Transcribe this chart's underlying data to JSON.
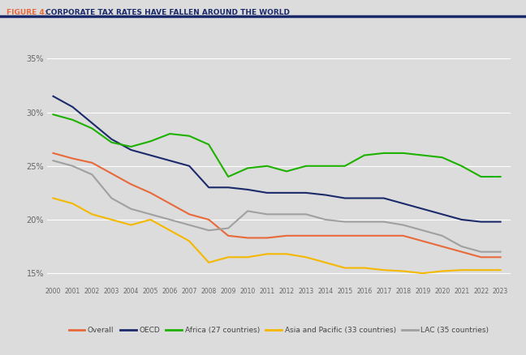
{
  "title_figure": "FIGURE 4:",
  "title_text": " CORPORATE TAX RATES HAVE FALLEN AROUND THE WORLD",
  "title_color_figure": "#E8693A",
  "title_color_text": "#1B2A6B",
  "background_color": "#DCDCDC",
  "plot_bg_color": "#DCDCDC",
  "years": [
    2000,
    2001,
    2002,
    2003,
    2004,
    2005,
    2006,
    2007,
    2008,
    2009,
    2010,
    2011,
    2012,
    2013,
    2014,
    2015,
    2016,
    2017,
    2018,
    2019,
    2020,
    2021,
    2022,
    2023
  ],
  "series": {
    "Overall": {
      "color": "#E8693A",
      "values": [
        26.2,
        25.7,
        25.3,
        24.3,
        23.3,
        22.5,
        21.5,
        20.5,
        20.0,
        18.5,
        18.3,
        18.3,
        18.5,
        18.5,
        18.5,
        18.5,
        18.5,
        18.5,
        18.5,
        18.0,
        17.5,
        17.0,
        16.5,
        16.5
      ]
    },
    "OECD": {
      "color": "#1B2A6B",
      "values": [
        31.5,
        30.5,
        29.0,
        27.5,
        26.5,
        26.0,
        25.5,
        25.0,
        23.0,
        23.0,
        22.8,
        22.5,
        22.5,
        22.5,
        22.3,
        22.0,
        22.0,
        22.0,
        21.5,
        21.0,
        20.5,
        20.0,
        19.8,
        19.8
      ]
    },
    "Africa (27 countries)": {
      "color": "#1DB100",
      "values": [
        29.8,
        29.3,
        28.5,
        27.2,
        26.8,
        27.3,
        28.0,
        27.8,
        27.0,
        24.0,
        24.8,
        25.0,
        24.5,
        25.0,
        25.0,
        25.0,
        26.0,
        26.2,
        26.2,
        26.0,
        25.8,
        25.0,
        24.0,
        24.0
      ]
    },
    "Asia and Pacific (33 countries)": {
      "color": "#F5B800",
      "values": [
        22.0,
        21.5,
        20.5,
        20.0,
        19.5,
        20.0,
        19.0,
        18.0,
        16.0,
        16.5,
        16.5,
        16.8,
        16.8,
        16.5,
        16.0,
        15.5,
        15.5,
        15.3,
        15.2,
        15.0,
        15.2,
        15.3,
        15.3,
        15.3
      ]
    },
    "LAC (35 countries)": {
      "color": "#A0A0A0",
      "values": [
        25.5,
        25.0,
        24.2,
        22.0,
        21.0,
        20.5,
        20.0,
        19.5,
        19.0,
        19.2,
        20.8,
        20.5,
        20.5,
        20.5,
        20.0,
        19.8,
        19.8,
        19.8,
        19.5,
        19.0,
        18.5,
        17.5,
        17.0,
        17.0
      ]
    }
  },
  "ylim": [
    14.0,
    36.5
  ],
  "yticks": [
    15,
    20,
    25,
    30,
    35
  ],
  "ytick_labels": [
    "15%",
    "20%",
    "25%",
    "30%",
    "35%"
  ],
  "legend_labels": [
    "Overall",
    "OECD",
    "Africa (27 countries)",
    "Asia and Pacific (33 countries)",
    "LAC (35 countries)"
  ]
}
